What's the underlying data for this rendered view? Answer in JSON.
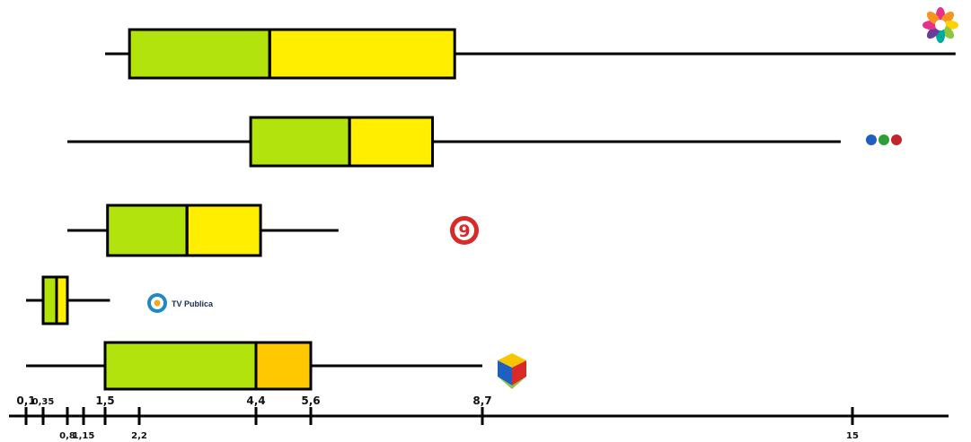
{
  "chart_data": {
    "type": "boxplot",
    "title": "",
    "xlabel": "",
    "ylabel": "",
    "grid": false,
    "legend": "none",
    "xlim": [
      0,
      16.5
    ],
    "x_ticks": [
      {
        "value": 0.1,
        "label": "0,1",
        "row": "above"
      },
      {
        "value": 0.35,
        "label": "0,35",
        "row": "above"
      },
      {
        "value": 0.8,
        "label": "0,8",
        "row": "below"
      },
      {
        "value": 1.15,
        "label": "1,15",
        "row": "below"
      },
      {
        "value": 1.5,
        "label": "1,5",
        "row": "above"
      },
      {
        "value": 2.2,
        "label": "2,2",
        "row": "below"
      },
      {
        "value": 4.4,
        "label": "4,4",
        "row": "above"
      },
      {
        "value": 5.6,
        "label": "5,6",
        "row": "above"
      },
      {
        "value": 8.7,
        "label": "8,7",
        "row": "above"
      },
      {
        "value": 15,
        "label": "15",
        "row": "below"
      }
    ],
    "series": [
      {
        "min": 1.5,
        "q1": 2.0,
        "median": 4.7,
        "q3": 8.2,
        "max": 16.4,
        "lower_color": "#b2e30d",
        "upper_color": "#ffee00",
        "logo": "star-flower-logo-icon",
        "logo_text": ""
      },
      {
        "min": 0.8,
        "q1": 4.3,
        "median": 6.3,
        "q3": 7.8,
        "max": 14.8,
        "lower_color": "#b2e30d",
        "upper_color": "#ffee00",
        "logo": "three-dots-logo-icon",
        "logo_text": ""
      },
      {
        "min": 0.8,
        "q1": 1.55,
        "median": 3.1,
        "q3": 4.5,
        "max": 6.1,
        "lower_color": "#b2e30d",
        "upper_color": "#ffee00",
        "logo": "nine-circle-logo-icon",
        "logo_text": ""
      },
      {
        "min": 0.1,
        "q1": 0.35,
        "median": 0.6,
        "q3": 0.8,
        "max": 1.6,
        "lower_color": "#b2e30d",
        "upper_color": "#ffee00",
        "logo": "tv-publica-logo-icon",
        "logo_text": "TV Publica"
      },
      {
        "min": 0.1,
        "q1": 1.5,
        "median": 4.4,
        "q3": 5.6,
        "max": 8.7,
        "lower_color": "#b2e30d",
        "upper_color": "#ffc800",
        "logo": "cube-logo-icon",
        "logo_text": ""
      }
    ]
  }
}
